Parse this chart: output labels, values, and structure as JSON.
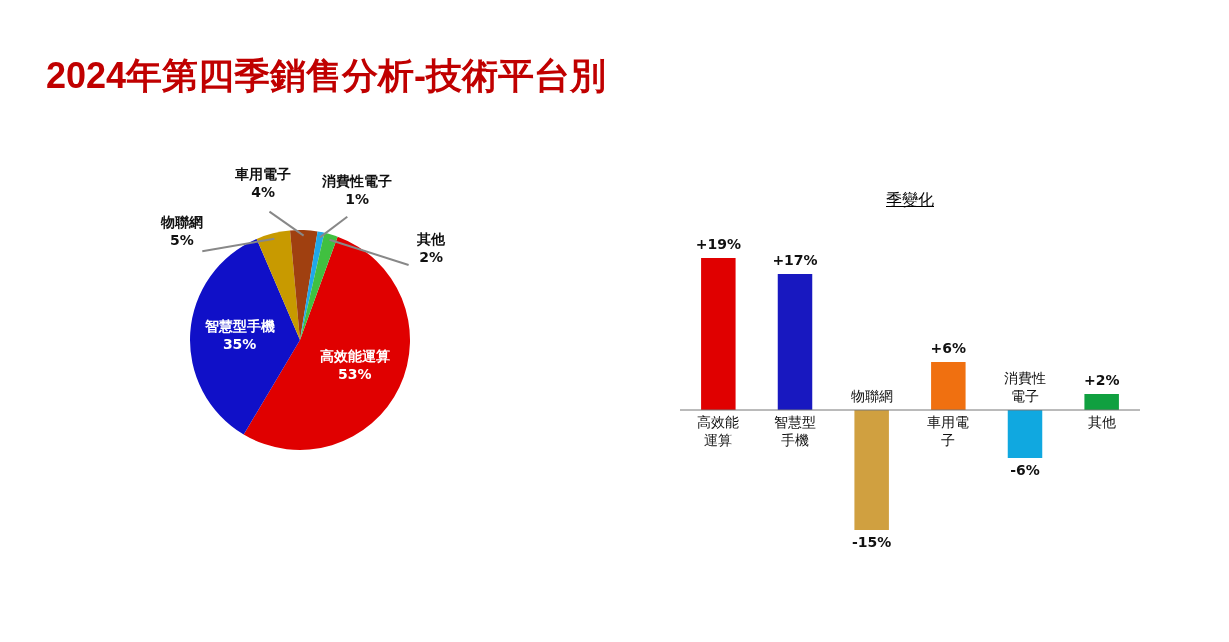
{
  "chart_data": [
    {
      "type": "pie",
      "title": "2024年第四季銷售分析-技術平台別",
      "categories": [
        "高效能運算",
        "智慧型手機",
        "物聯網",
        "車用電子",
        "消費性電子",
        "其他"
      ],
      "values": [
        53,
        35,
        5,
        4,
        1,
        2
      ],
      "colors": [
        "#e00000",
        "#1010c8",
        "#c89a00",
        "#a04010",
        "#20a8e8",
        "#40c040"
      ],
      "value_labels": [
        "53%",
        "35%",
        "5%",
        "4%",
        "1%",
        "2%"
      ]
    },
    {
      "type": "bar",
      "title": "季變化",
      "categories": [
        "高效能運算",
        "智慧型手機",
        "物聯網",
        "車用電子",
        "消費性電子",
        "其他"
      ],
      "values": [
        19,
        17,
        -15,
        6,
        -6,
        2
      ],
      "colors": [
        "#e00000",
        "#1818c0",
        "#d0a040",
        "#f07010",
        "#10a8e0",
        "#10a040"
      ],
      "value_labels": [
        "+19%",
        "+17%",
        "-15%",
        "+6%",
        "-6%",
        "+2%"
      ],
      "tick_labels": "x",
      "grid": false
    }
  ]
}
